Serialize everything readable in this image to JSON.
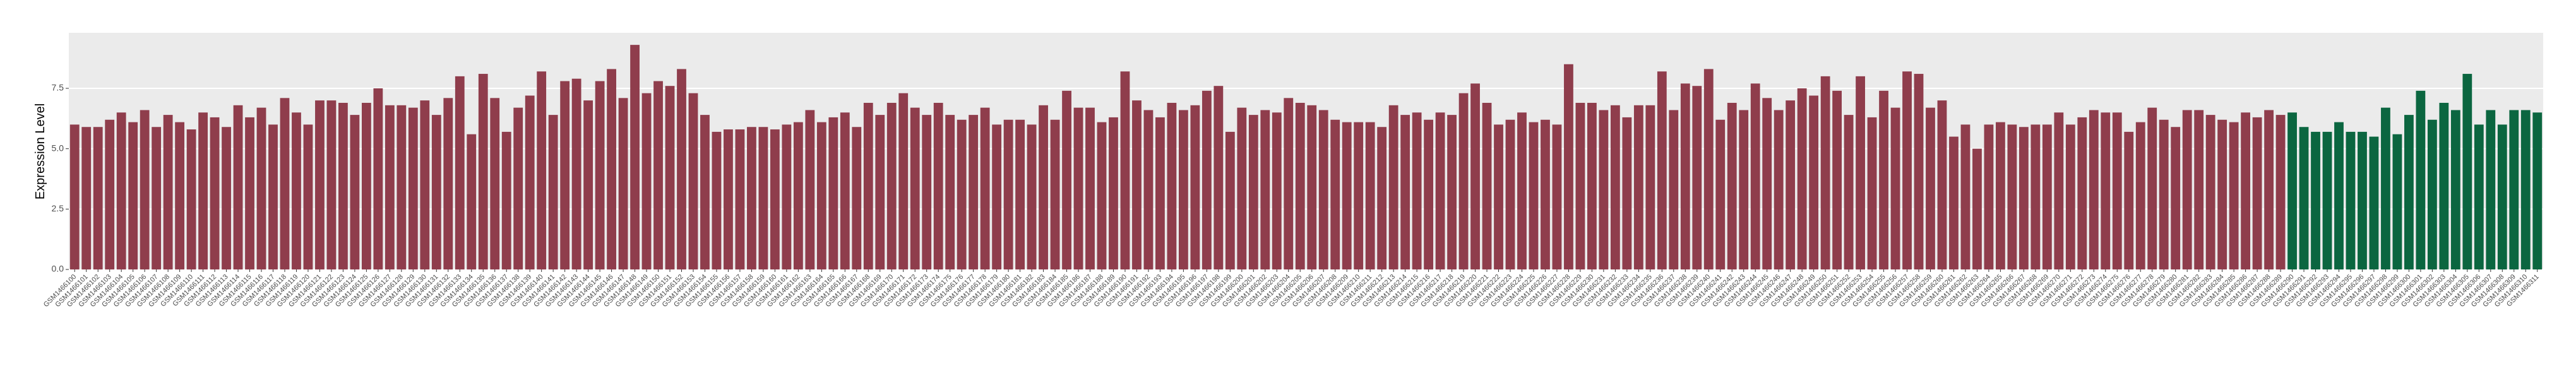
{
  "chart_data": {
    "type": "bar",
    "y_label": "Expression Level",
    "ylim": [
      0,
      9.8
    ],
    "yticks": [
      {
        "value": 0,
        "label": "0.0"
      },
      {
        "value": 2.5,
        "label": "2.5"
      },
      {
        "value": 5,
        "label": "5.0"
      },
      {
        "value": 7.5,
        "label": "7.5"
      }
    ],
    "grid": true,
    "series": [
      {
        "color": "#8f3d4c",
        "categories": [
          "GSM1466100",
          "GSM1466101",
          "GSM1466102",
          "GSM1466103",
          "GSM1466104",
          "GSM1466105",
          "GSM1466106",
          "GSM1466107",
          "GSM1466108",
          "GSM1466109",
          "GSM1466110",
          "GSM1466111",
          "GSM1466112",
          "GSM1466113",
          "GSM1466114",
          "GSM1466115",
          "GSM1466116",
          "GSM1466117",
          "GSM1466118",
          "GSM1466119",
          "GSM1466120",
          "GSM1466121",
          "GSM1466122",
          "GSM1466123",
          "GSM1466124",
          "GSM1466125",
          "GSM1466126",
          "GSM1466127",
          "GSM1466128",
          "GSM1466129",
          "GSM1466130",
          "GSM1466131",
          "GSM1466132",
          "GSM1466133",
          "GSM1466134",
          "GSM1466135",
          "GSM1466136",
          "GSM1466137",
          "GSM1466138",
          "GSM1466139",
          "GSM1466140",
          "GSM1466141",
          "GSM1466142",
          "GSM1466143",
          "GSM1466144",
          "GSM1466145",
          "GSM1466146",
          "GSM1466147",
          "GSM1466148",
          "GSM1466149",
          "GSM1466150",
          "GSM1466151",
          "GSM1466152",
          "GSM1466153",
          "GSM1466154",
          "GSM1466155",
          "GSM1466156",
          "GSM1466157",
          "GSM1466158",
          "GSM1466159",
          "GSM1466160",
          "GSM1466161",
          "GSM1466162",
          "GSM1466163",
          "GSM1466164",
          "GSM1466165",
          "GSM1466166",
          "GSM1466167",
          "GSM1466168",
          "GSM1466169",
          "GSM1466170",
          "GSM1466171",
          "GSM1466172",
          "GSM1466173",
          "GSM1466174",
          "GSM1466175",
          "GSM1466176",
          "GSM1466177",
          "GSM1466178",
          "GSM1466179",
          "GSM1466180",
          "GSM1466181",
          "GSM1466182",
          "GSM1466183",
          "GSM1466184",
          "GSM1466185",
          "GSM1466186",
          "GSM1466187",
          "GSM1466188",
          "GSM1466189",
          "GSM1466190",
          "GSM1466191",
          "GSM1466192",
          "GSM1466193",
          "GSM1466194",
          "GSM1466195",
          "GSM1466196",
          "GSM1466197",
          "GSM1466198",
          "GSM1466199",
          "GSM1466200",
          "GSM1466201",
          "GSM1466202",
          "GSM1466203",
          "GSM1466204",
          "GSM1466205",
          "GSM1466206",
          "GSM1466207",
          "GSM1466208",
          "GSM1466209",
          "GSM1466210",
          "GSM1466211",
          "GSM1466212",
          "GSM1466213",
          "GSM1466214",
          "GSM1466215",
          "GSM1466216",
          "GSM1466217",
          "GSM1466218",
          "GSM1466219",
          "GSM1466220",
          "GSM1466221",
          "GSM1466222",
          "GSM1466223",
          "GSM1466224",
          "GSM1466225",
          "GSM1466226",
          "GSM1466227",
          "GSM1466228",
          "GSM1466229",
          "GSM1466230",
          "GSM1466231",
          "GSM1466232",
          "GSM1466233",
          "GSM1466234",
          "GSM1466235",
          "GSM1466236",
          "GSM1466237",
          "GSM1466238",
          "GSM1466239",
          "GSM1466240",
          "GSM1466241",
          "GSM1466242",
          "GSM1466243",
          "GSM1466244",
          "GSM1466245",
          "GSM1466246",
          "GSM1466247",
          "GSM1466248",
          "GSM1466249",
          "GSM1466250",
          "GSM1466251",
          "GSM1466252",
          "GSM1466253",
          "GSM1466254",
          "GSM1466255",
          "GSM1466256",
          "GSM1466257",
          "GSM1466258",
          "GSM1466259",
          "GSM1466260",
          "GSM1466261",
          "GSM1466262",
          "GSM1466263",
          "GSM1466264",
          "GSM1466265",
          "GSM1466266",
          "GSM1466267",
          "GSM1466268",
          "GSM1466269",
          "GSM1466270",
          "GSM1466271",
          "GSM1466272",
          "GSM1466273",
          "GSM1466274",
          "GSM1466275",
          "GSM1466276",
          "GSM1466277",
          "GSM1466278",
          "GSM1466279",
          "GSM1466280",
          "GSM1466281",
          "GSM1466282",
          "GSM1466283",
          "GSM1466284",
          "GSM1466285",
          "GSM1466286",
          "GSM1466287",
          "GSM1466288",
          "GSM1466289"
        ],
        "values": [
          6.0,
          5.9,
          5.9,
          6.2,
          6.5,
          6.1,
          6.6,
          5.9,
          6.4,
          6.1,
          5.8,
          6.5,
          6.3,
          5.9,
          6.8,
          6.3,
          6.7,
          6.0,
          7.1,
          6.5,
          6.0,
          7.0,
          7.0,
          6.9,
          6.4,
          6.9,
          7.5,
          6.8,
          6.8,
          6.7,
          7.0,
          6.4,
          7.1,
          8.0,
          5.6,
          8.1,
          7.1,
          5.7,
          6.7,
          7.2,
          8.2,
          6.4,
          7.8,
          7.9,
          7.0,
          7.8,
          8.3,
          7.1,
          9.3,
          7.3,
          7.8,
          7.6,
          8.3,
          7.3,
          6.4,
          5.7,
          5.8,
          5.8,
          5.9,
          5.9,
          5.8,
          6.0,
          6.1,
          6.6,
          6.1,
          6.3,
          6.5,
          5.9,
          6.9,
          6.4,
          6.9,
          7.3,
          6.7,
          6.4,
          6.9,
          6.4,
          6.2,
          6.4,
          6.7,
          6.0,
          6.2,
          6.2,
          6.0,
          6.8,
          6.2,
          7.4,
          6.7,
          6.7,
          6.1,
          6.3,
          8.2,
          7.0,
          6.6,
          6.3,
          6.9,
          6.6,
          6.8,
          7.4,
          7.6,
          5.7,
          6.7,
          6.4,
          6.6,
          6.5,
          7.1,
          6.9,
          6.8,
          6.6,
          6.2,
          6.1,
          6.1,
          6.1,
          5.9,
          6.8,
          6.4,
          6.5,
          6.2,
          6.5,
          6.4,
          7.3,
          7.7,
          6.9,
          6.0,
          6.2,
          6.5,
          6.1,
          6.2,
          6.0,
          8.5,
          6.9,
          6.9,
          6.6,
          6.8,
          6.3,
          6.8,
          6.8,
          8.2,
          6.6,
          7.7,
          7.6,
          8.3,
          6.2,
          6.9,
          6.6,
          7.7,
          7.1,
          6.6,
          7.0,
          7.5,
          7.2,
          8.0,
          7.4,
          6.4,
          8.0,
          6.3,
          7.4,
          6.7,
          8.2,
          8.1,
          6.7,
          7.0,
          5.5,
          6.0,
          5.0,
          6.0,
          6.1,
          6.0,
          5.9,
          6.0,
          6.0,
          6.5,
          6.0,
          6.3,
          6.6,
          6.5,
          6.5,
          5.7,
          6.1,
          6.7,
          6.2,
          5.9,
          6.6,
          6.6,
          6.4,
          6.2,
          6.1,
          6.5,
          6.3,
          6.6,
          6.4
        ]
      },
      {
        "color": "#0b6640",
        "categories": [
          "GSM1466290",
          "GSM1466291",
          "GSM1466292",
          "GSM1466293",
          "GSM1466294",
          "GSM1466295",
          "GSM1466296",
          "GSM1466297",
          "GSM1466298",
          "GSM1466299",
          "GSM1466300",
          "GSM1466301",
          "GSM1466302",
          "GSM1466303",
          "GSM1466304",
          "GSM1466305",
          "GSM1466306",
          "GSM1466307",
          "GSM1466308",
          "GSM1466309",
          "GSM1466310",
          "GSM1466311"
        ],
        "values": [
          6.5,
          5.9,
          5.7,
          5.7,
          6.1,
          5.7,
          5.7,
          5.5,
          6.7,
          5.6,
          6.4,
          7.4,
          6.2,
          6.9,
          6.6,
          8.1,
          6.0,
          6.6,
          6.0,
          6.6,
          6.6,
          6.5
        ]
      }
    ]
  }
}
